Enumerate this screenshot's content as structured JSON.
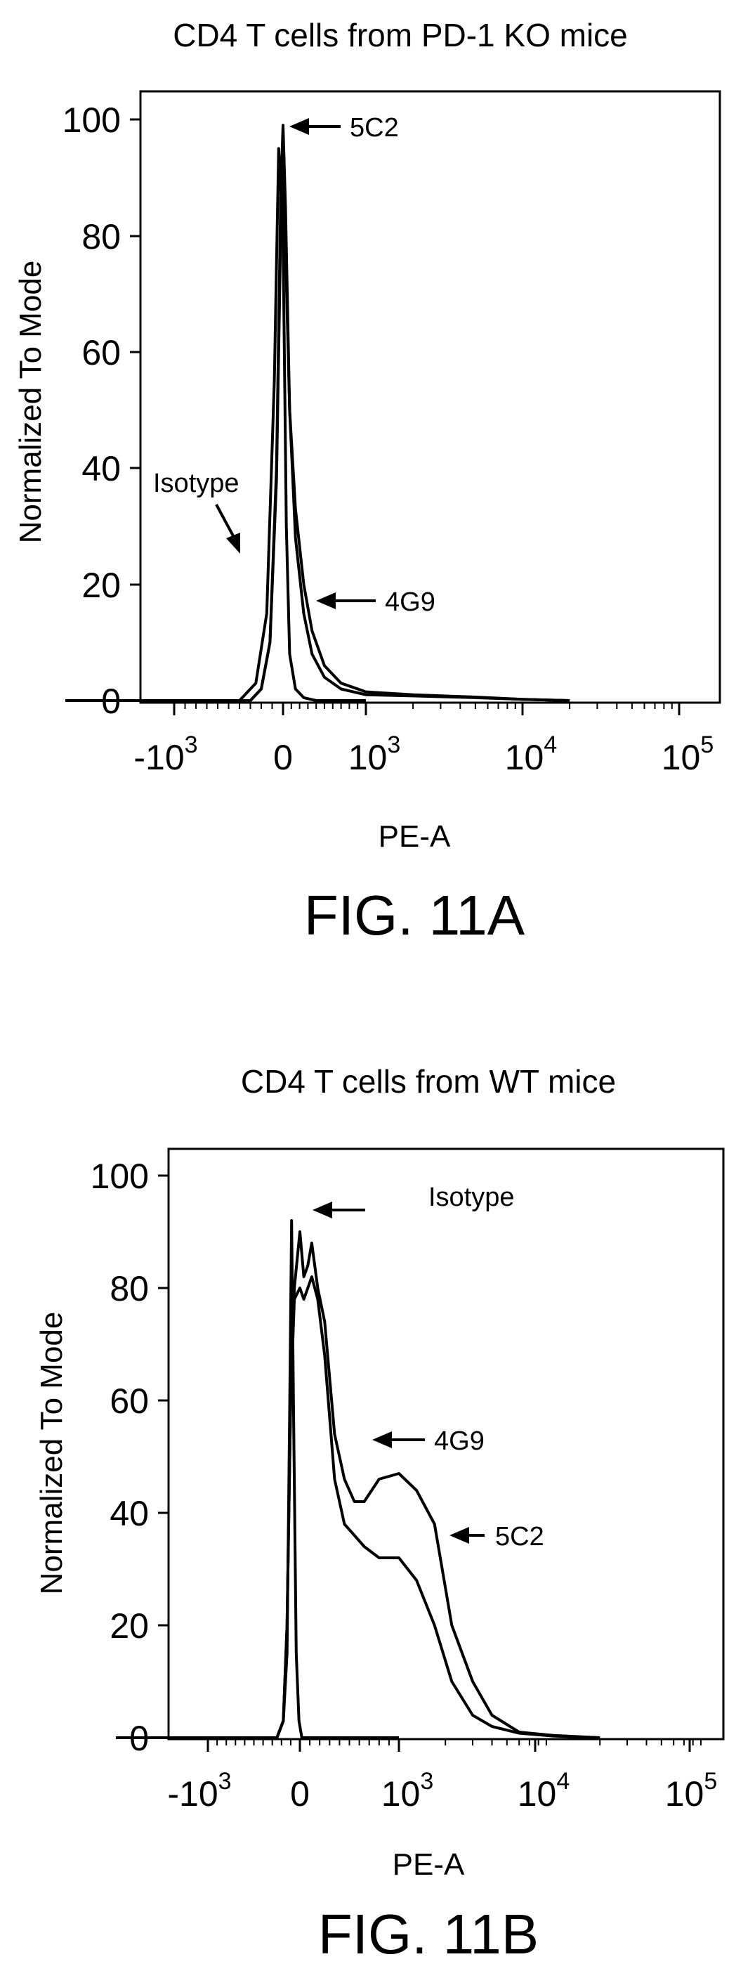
{
  "chart_data": [
    {
      "type": "line",
      "title": "CD4 T cells from PD-1 KO mice",
      "xlabel": "PE-A",
      "ylabel": "Normalized To Mode",
      "figure_label": "FIG. 11A",
      "xscale": "biexponential",
      "x_ticks": [
        {
          "label": "-10",
          "sup": "3",
          "value": -1000
        },
        {
          "label": "0",
          "sup": "",
          "value": 0
        },
        {
          "label": "10",
          "sup": "3",
          "value": 1000
        },
        {
          "label": "10",
          "sup": "4",
          "value": 10000
        },
        {
          "label": "10",
          "sup": "5",
          "value": 100000
        }
      ],
      "y_ticks": [
        0,
        20,
        40,
        60,
        80,
        100
      ],
      "ylim": [
        0,
        103
      ],
      "grid": false,
      "series": [
        {
          "name": "Isotype",
          "x": [
            -2000,
            -400,
            -250,
            -150,
            -80,
            -40,
            0,
            40,
            80,
            150,
            250,
            400,
            1000
          ],
          "y": [
            0,
            0,
            3,
            15,
            55,
            95,
            80,
            30,
            8,
            2,
            0.5,
            0,
            0
          ]
        },
        {
          "name": "5C2",
          "x": [
            -2000,
            -300,
            -200,
            -120,
            -60,
            -20,
            0,
            30,
            80,
            150,
            250,
            350,
            500,
            700,
            1000,
            2000,
            5000,
            10000,
            20000
          ],
          "y": [
            0,
            0,
            2,
            10,
            40,
            88,
            99,
            85,
            50,
            28,
            15,
            8,
            4,
            2,
            1,
            0.8,
            0.5,
            0.2,
            0
          ]
        },
        {
          "name": "4G9",
          "x": [
            -2000,
            -300,
            -200,
            -120,
            -60,
            -20,
            0,
            30,
            80,
            150,
            250,
            350,
            500,
            700,
            1000,
            2000,
            5000,
            10000,
            20000
          ],
          "y": [
            0,
            0,
            2,
            10,
            38,
            82,
            92,
            78,
            50,
            33,
            20,
            12,
            6,
            3,
            1.5,
            1,
            0.6,
            0.2,
            0
          ]
        }
      ],
      "annotations": [
        "5C2",
        "4G9",
        "Isotype"
      ]
    },
    {
      "type": "line",
      "title": "CD4 T cells from WT mice",
      "xlabel": "PE-A",
      "ylabel": "Normalized To Mode",
      "figure_label": "FIG. 11B",
      "xscale": "biexponential",
      "x_ticks": [
        {
          "label": "-10",
          "sup": "3",
          "value": -1000
        },
        {
          "label": "0",
          "sup": "",
          "value": 0
        },
        {
          "label": "10",
          "sup": "3",
          "value": 1000
        },
        {
          "label": "10",
          "sup": "4",
          "value": 10000
        },
        {
          "label": "10",
          "sup": "5",
          "value": 100000
        }
      ],
      "y_ticks": [
        0,
        20,
        40,
        60,
        80,
        100
      ],
      "ylim": [
        0,
        103
      ],
      "grid": false,
      "series": [
        {
          "name": "Isotype",
          "x": [
            -2000,
            -250,
            -180,
            -140,
            -110,
            -90,
            -70,
            -40,
            -10,
            20,
            1000
          ],
          "y": [
            0,
            0,
            3,
            15,
            60,
            92,
            60,
            15,
            3,
            0,
            0
          ]
        },
        {
          "name": "4G9",
          "x": [
            -2000,
            -250,
            -180,
            -140,
            -100,
            -60,
            0,
            40,
            80,
            120,
            180,
            250,
            350,
            450,
            550,
            650,
            800,
            1000,
            1300,
            1700,
            2200,
            3000,
            4000,
            6000,
            10000,
            20000
          ],
          "y": [
            0,
            0,
            3,
            20,
            60,
            80,
            90,
            82,
            84,
            88,
            80,
            74,
            54,
            46,
            42,
            42,
            46,
            47,
            44,
            38,
            20,
            10,
            4,
            1,
            0.4,
            0
          ]
        },
        {
          "name": "5C2",
          "x": [
            -2000,
            -250,
            -180,
            -140,
            -100,
            -60,
            0,
            40,
            80,
            120,
            180,
            250,
            350,
            450,
            550,
            650,
            800,
            1000,
            1300,
            1700,
            2200,
            3000,
            4000,
            6000,
            10000,
            20000
          ],
          "y": [
            0,
            0,
            3,
            20,
            60,
            78,
            80,
            78,
            80,
            82,
            78,
            68,
            46,
            38,
            36,
            34,
            32,
            32,
            28,
            20,
            10,
            4,
            2,
            0.8,
            0.3,
            0
          ]
        }
      ],
      "annotations": [
        "Isotype",
        "4G9",
        "5C2"
      ]
    }
  ]
}
